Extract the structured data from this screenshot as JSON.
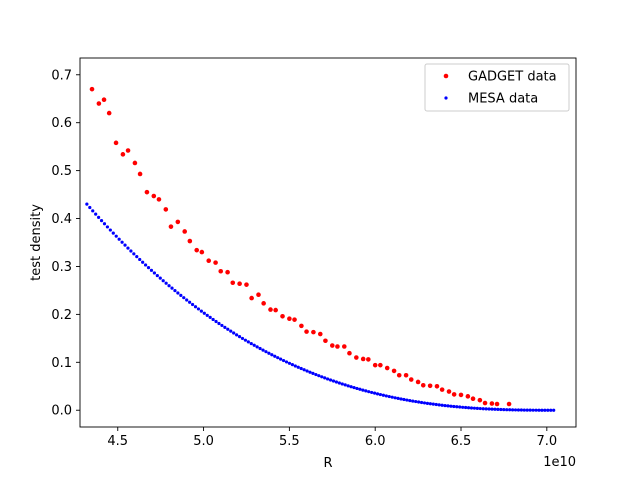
{
  "chart_data": {
    "type": "scatter",
    "title": "",
    "xlabel": "R",
    "ylabel": "test density",
    "x_offset_label": "1e10",
    "xlim": [
      4.28,
      7.17
    ],
    "ylim": [
      -0.035,
      0.735
    ],
    "x_ticks": [
      4.5,
      5.0,
      5.5,
      6.0,
      6.5,
      7.0
    ],
    "x_tick_labels": [
      "4.5",
      "5.0",
      "5.5",
      "6.0",
      "6.5",
      "7.0"
    ],
    "y_ticks": [
      0.0,
      0.1,
      0.2,
      0.3,
      0.4,
      0.5,
      0.6,
      0.7
    ],
    "y_tick_labels": [
      "0.0",
      "0.1",
      "0.2",
      "0.3",
      "0.4",
      "0.5",
      "0.6",
      "0.7"
    ],
    "grid": false,
    "legend_position": "top-right",
    "series": [
      {
        "name": "GADGET data",
        "color": "#ff0000",
        "marker_size": 2.3,
        "x": [
          4.35,
          4.39,
          4.42,
          4.45,
          4.49,
          4.53,
          4.56,
          4.6,
          4.63,
          4.67,
          4.71,
          4.74,
          4.78,
          4.81,
          4.85,
          4.89,
          4.92,
          4.96,
          4.99,
          5.03,
          5.07,
          5.1,
          5.14,
          5.17,
          5.21,
          5.25,
          5.28,
          5.32,
          5.35,
          5.39,
          5.42,
          5.46,
          5.5,
          5.53,
          5.57,
          5.6,
          5.64,
          5.68,
          5.71,
          5.75,
          5.78,
          5.82,
          5.85,
          5.89,
          5.93,
          5.96,
          6.0,
          6.03,
          6.07,
          6.11,
          6.14,
          6.18,
          6.21,
          6.25,
          6.28,
          6.32,
          6.36,
          6.39,
          6.43,
          6.46,
          6.5,
          6.54,
          6.57,
          6.61,
          6.64,
          6.68,
          6.71,
          6.78
        ],
        "y": [
          0.67,
          0.64,
          0.648,
          0.62,
          0.558,
          0.534,
          0.542,
          0.516,
          0.493,
          0.455,
          0.447,
          0.44,
          0.419,
          0.383,
          0.393,
          0.373,
          0.353,
          0.334,
          0.33,
          0.312,
          0.308,
          0.29,
          0.288,
          0.266,
          0.264,
          0.262,
          0.234,
          0.241,
          0.223,
          0.21,
          0.209,
          0.196,
          0.191,
          0.189,
          0.176,
          0.164,
          0.163,
          0.159,
          0.145,
          0.135,
          0.133,
          0.133,
          0.119,
          0.11,
          0.107,
          0.106,
          0.094,
          0.094,
          0.088,
          0.082,
          0.073,
          0.073,
          0.064,
          0.059,
          0.052,
          0.051,
          0.05,
          0.043,
          0.039,
          0.033,
          0.032,
          0.029,
          0.024,
          0.021,
          0.015,
          0.014,
          0.013,
          0.013
        ]
      },
      {
        "name": "MESA data",
        "color": "#0000ff",
        "marker_size": 1.6,
        "x_start": 4.32,
        "x_end": 7.04,
        "point_count": 160,
        "decay_model": "y = 0.43 * ((7.04 - x) / 2.72)^2.6"
      }
    ]
  }
}
